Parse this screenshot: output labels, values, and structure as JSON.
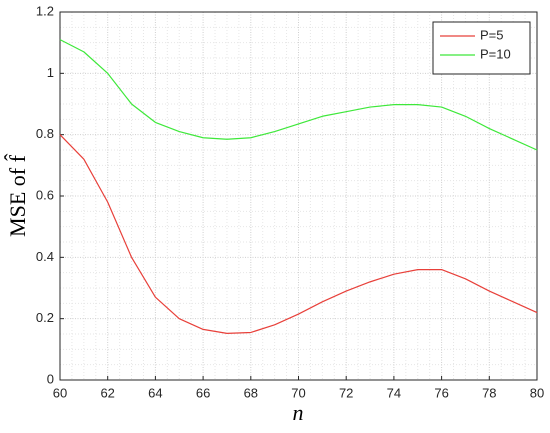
{
  "chart_data": {
    "type": "line",
    "xlabel": "n",
    "ylabel": "MSE of f̂",
    "x": [
      60,
      61,
      62,
      63,
      64,
      65,
      66,
      67,
      68,
      69,
      70,
      71,
      72,
      73,
      74,
      75,
      76,
      77,
      78,
      79,
      80
    ],
    "series": [
      {
        "name": "P=5",
        "color": "#e8403a",
        "values": [
          0.8,
          0.72,
          0.58,
          0.4,
          0.27,
          0.2,
          0.165,
          0.152,
          0.155,
          0.18,
          0.215,
          0.255,
          0.29,
          0.32,
          0.345,
          0.36,
          0.36,
          0.33,
          0.29,
          0.255,
          0.22
        ]
      },
      {
        "name": "P=10",
        "color": "#3ee83a",
        "values": [
          1.11,
          1.07,
          1.0,
          0.9,
          0.84,
          0.81,
          0.79,
          0.785,
          0.79,
          0.81,
          0.835,
          0.86,
          0.875,
          0.89,
          0.898,
          0.898,
          0.89,
          0.86,
          0.82,
          0.785,
          0.75
        ]
      }
    ],
    "xlim": [
      60,
      80
    ],
    "xticks": [
      60,
      62,
      64,
      66,
      68,
      70,
      72,
      74,
      76,
      78,
      80
    ],
    "ylim": [
      0,
      1.2
    ],
    "yticks": [
      0,
      0.2,
      0.4,
      0.6,
      0.8,
      1,
      1.2
    ],
    "grid": true,
    "minor_grid": true,
    "legend": "upper right"
  }
}
